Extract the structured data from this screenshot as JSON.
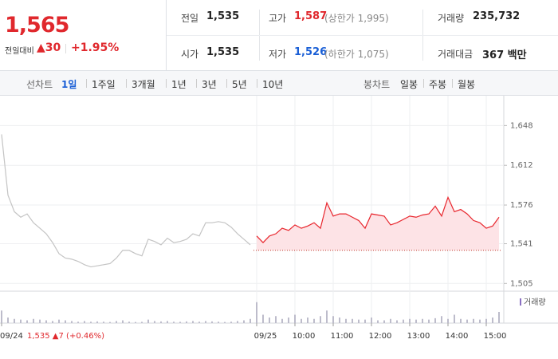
{
  "header": {
    "price": "1,565",
    "change_label": "전일대비",
    "change": "▲30",
    "change_pct": "+1.95%"
  },
  "info": [
    {
      "label": "전일",
      "value": "1,535",
      "color": "#222222"
    },
    {
      "label": "고가",
      "value": "1,587",
      "note": "(상한가 1,995)",
      "color": "#e0282d"
    },
    {
      "label": "거래량",
      "value": "235,732",
      "color": "#222222"
    },
    {
      "label": "시가",
      "value": "1,535",
      "color": "#222222"
    },
    {
      "label": "저가",
      "value": "1,526",
      "note": "(하한가 1,075)",
      "color": "#1a5fd6"
    },
    {
      "label": "거래대금",
      "value": "367 백만",
      "color": "#222222"
    }
  ],
  "tabs": {
    "line_label": "선차트",
    "line_periods": [
      "1일",
      "1주일",
      "3개월",
      "1년",
      "3년",
      "5년",
      "10년"
    ],
    "active": 0,
    "candle_label": "봉차트",
    "candle_periods": [
      "일봉",
      "주봉",
      "월봉"
    ]
  },
  "chart_data": {
    "type": "line",
    "categories": [
      "09/24",
      null,
      null,
      null,
      null,
      null,
      null,
      null,
      null,
      null,
      null,
      null,
      null,
      null,
      null,
      null,
      null,
      null,
      null,
      null,
      null,
      null,
      null,
      null,
      null,
      null,
      null,
      null,
      null,
      null,
      null,
      null,
      null,
      null,
      null,
      null,
      null,
      null,
      null,
      null,
      "09/25",
      null,
      null,
      null,
      null,
      null,
      "10:00",
      null,
      null,
      null,
      null,
      null,
      "11:00",
      null,
      null,
      null,
      null,
      null,
      "12:00",
      null,
      null,
      null,
      null,
      null,
      "13:00",
      null,
      null,
      null,
      null,
      null,
      "14:00",
      null,
      null,
      null,
      null,
      null,
      "15:00",
      null,
      null
    ],
    "series": [
      {
        "color": "#c4c4c4",
        "values": [
          1640,
          1585,
          1570,
          1565,
          1568,
          1560,
          1555,
          1550,
          1542,
          1532,
          1528,
          1527,
          1525,
          1522,
          1520,
          1521,
          1522,
          1523,
          1528,
          1535,
          1535,
          1532,
          1530,
          1545,
          1543,
          1540,
          1546,
          1542,
          1543,
          1545,
          1550,
          1548,
          1560,
          1560,
          1561,
          1560,
          1556,
          1550,
          1545,
          1540,
          null,
          null,
          null,
          null,
          null,
          null,
          null,
          null,
          null,
          null,
          null,
          null,
          null,
          null,
          null,
          null,
          null,
          null,
          null,
          null,
          null,
          null,
          null,
          null,
          null,
          null,
          null,
          null,
          null,
          null,
          null,
          null,
          null,
          null,
          null,
          null,
          null,
          null,
          null
        ]
      },
      {
        "color": "#e8262d",
        "fill": "#fde3e6",
        "values": [
          null,
          null,
          null,
          null,
          null,
          null,
          null,
          null,
          null,
          null,
          null,
          null,
          null,
          null,
          null,
          null,
          null,
          null,
          null,
          null,
          null,
          null,
          null,
          null,
          null,
          null,
          null,
          null,
          null,
          null,
          null,
          null,
          null,
          null,
          null,
          null,
          null,
          null,
          null,
          null,
          1548,
          1542,
          1548,
          1550,
          1555,
          1553,
          1558,
          1555,
          1557,
          1560,
          1555,
          1578,
          1566,
          1568,
          1568,
          1565,
          1562,
          1555,
          1568,
          1567,
          1566,
          1558,
          1560,
          1563,
          1566,
          1565,
          1567,
          1568,
          1575,
          1566,
          1583,
          1570,
          1572,
          1568,
          1562,
          1560,
          1555,
          1557,
          1565
        ]
      }
    ],
    "baseline": 1535,
    "ylim": [
      1498,
      1675
    ],
    "yticks": [
      {
        "value": 1648,
        "label": "1,648"
      },
      {
        "value": 1612,
        "label": "1,612"
      },
      {
        "value": 1576,
        "label": "1,576"
      },
      {
        "value": 1541,
        "label": "1,541"
      },
      {
        "value": 1505,
        "label": "1,505"
      }
    ],
    "grid": true,
    "volume": {
      "name": "거래량",
      "color": "#bdbccb",
      "ylim": [
        0,
        20000
      ],
      "values": [
        9000,
        4000,
        3000,
        2500,
        2000,
        3000,
        2500,
        2000,
        1500,
        2500,
        2000,
        1500,
        1000,
        1500,
        1000,
        1200,
        1000,
        800,
        1500,
        2000,
        1000,
        800,
        900,
        2500,
        1500,
        1200,
        1500,
        1000,
        900,
        1200,
        1500,
        1000,
        1500,
        1200,
        1000,
        800,
        1000,
        1500,
        2000,
        3000,
        15000,
        6000,
        4000,
        5000,
        3000,
        4000,
        6000,
        3000,
        4000,
        3000,
        5000,
        9000,
        5000,
        4000,
        3000,
        3000,
        2500,
        2500,
        4000,
        2000,
        2000,
        3000,
        2000,
        2500,
        3000,
        2500,
        3000,
        2500,
        3500,
        5000,
        3000,
        6000,
        3000,
        2500,
        3000,
        2500,
        3000,
        4000,
        8000
      ]
    },
    "annotation": "1,535 ▲7 (+0.46%)"
  }
}
